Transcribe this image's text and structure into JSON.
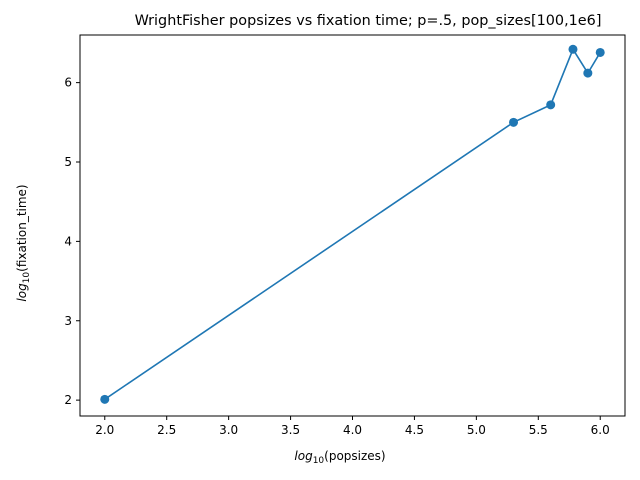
{
  "chart_data": {
    "type": "line",
    "title": "WrightFisher popsizes vs fixation time; p=.5, pop_sizes[100,1e6]",
    "xlabel": {
      "prefix": "log",
      "subscript": "10",
      "text": "(popsizes)"
    },
    "ylabel": {
      "prefix": "log",
      "subscript": "10",
      "text": "(fixation_time)"
    },
    "xlim": [
      1.8,
      6.2
    ],
    "ylim": [
      1.8,
      6.6
    ],
    "xticks": [
      2.0,
      2.5,
      3.0,
      3.5,
      4.0,
      4.5,
      5.0,
      5.5,
      6.0
    ],
    "xtick_labels": [
      "2.0",
      "2.5",
      "3.0",
      "3.5",
      "4.0",
      "4.5",
      "5.0",
      "5.5",
      "6.0"
    ],
    "yticks": [
      2,
      3,
      4,
      5,
      6
    ],
    "ytick_labels": [
      "2",
      "3",
      "4",
      "5",
      "6"
    ],
    "grid": false,
    "legend": "none",
    "color": "#1f77b4",
    "marker": "circle",
    "series": [
      {
        "x": [
          2.0,
          5.3,
          5.6,
          5.78,
          5.9,
          6.0
        ],
        "y": [
          2.01,
          5.5,
          5.72,
          6.42,
          6.12,
          6.38
        ]
      }
    ]
  }
}
